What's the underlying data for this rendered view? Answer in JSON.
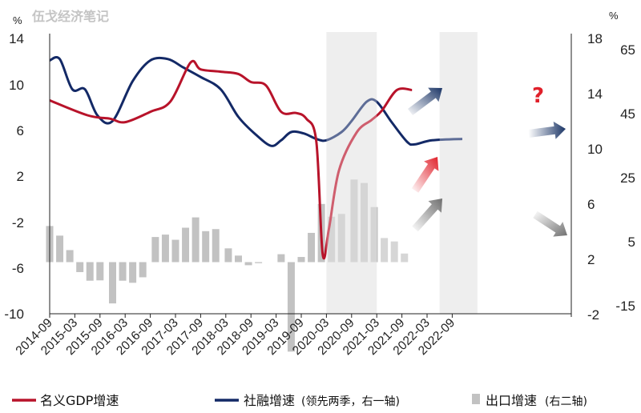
{
  "watermark": "伍戈经济笔记",
  "chart_data": {
    "type": "line",
    "title": "",
    "xlabel": "",
    "ylabel": "",
    "x_tick_labels": [
      "2014-09",
      "2015-03",
      "2015-09",
      "2016-03",
      "2016-09",
      "2017-03",
      "2017-09",
      "2018-03",
      "2018-09",
      "2019-03",
      "2019-09",
      "2020-03",
      "2020-09",
      "2021-03",
      "2021-09",
      "2022-03",
      "2022-09"
    ],
    "axes": {
      "left": {
        "unit": "%",
        "ticks": [
          "14",
          "10",
          "6",
          "2",
          "-2",
          "-6",
          "-10"
        ],
        "range": [
          -10,
          14
        ]
      },
      "right1": {
        "unit": "",
        "ticks": [
          "18",
          "14",
          "10",
          "6",
          "2",
          "-2"
        ],
        "range": [
          -2,
          18
        ]
      },
      "right2": {
        "unit": "%",
        "ticks": [
          "65",
          "45",
          "25",
          "5",
          "-15"
        ],
        "range": [
          -15,
          65
        ]
      }
    },
    "shaded_periods": [
      [
        "2020-03",
        "2021-03"
      ],
      [
        "2022-06",
        "2023-03"
      ]
    ],
    "series": [
      {
        "name": "名义GDP增速",
        "axis": "left",
        "color": "#b8132a",
        "values": [
          [
            0,
            8.6
          ],
          [
            1.5,
            7.3
          ],
          [
            2.4,
            7.0
          ],
          [
            3.0,
            6.7
          ],
          [
            4.0,
            7.6
          ],
          [
            4.8,
            8.5
          ],
          [
            5.6,
            11.9
          ],
          [
            6.0,
            11.3
          ],
          [
            6.8,
            11.1
          ],
          [
            7.5,
            10.9
          ],
          [
            8.0,
            10.2
          ],
          [
            8.6,
            9.9
          ],
          [
            9.2,
            7.6
          ],
          [
            9.8,
            7.5
          ],
          [
            10.2,
            7.0
          ],
          [
            10.6,
            5.0
          ],
          [
            10.85,
            -4.8
          ],
          [
            11.1,
            -2.6
          ],
          [
            11.5,
            2.5
          ],
          [
            12.2,
            5.8
          ],
          [
            12.8,
            6.9
          ],
          [
            13.2,
            7.7
          ],
          [
            13.8,
            9.5
          ],
          [
            14.4,
            9.5
          ]
        ]
      },
      {
        "name": "社融增速",
        "axis": "right1",
        "color": "#132966",
        "values": [
          [
            0,
            16.4
          ],
          [
            0.4,
            16.5
          ],
          [
            0.9,
            14.3
          ],
          [
            1.4,
            14.3
          ],
          [
            1.9,
            12.4
          ],
          [
            2.5,
            12.0
          ],
          [
            3.3,
            14.9
          ],
          [
            4.0,
            16.4
          ],
          [
            4.7,
            16.5
          ],
          [
            5.3,
            15.9
          ],
          [
            6.0,
            15.2
          ],
          [
            6.8,
            14.3
          ],
          [
            7.5,
            12.3
          ],
          [
            8.2,
            11.0
          ],
          [
            8.8,
            10.2
          ],
          [
            9.2,
            10.6
          ],
          [
            9.6,
            11.2
          ],
          [
            10.1,
            11.1
          ],
          [
            10.6,
            10.7
          ],
          [
            11.0,
            10.6
          ],
          [
            11.6,
            11.2
          ],
          [
            12.0,
            12.0
          ],
          [
            12.6,
            13.4
          ],
          [
            13.0,
            13.4
          ],
          [
            13.6,
            11.9
          ],
          [
            14.2,
            10.5
          ],
          [
            14.5,
            10.3
          ],
          [
            15.2,
            10.6
          ],
          [
            16.4,
            10.7
          ]
        ]
      },
      {
        "name": "出口增速",
        "axis": "right2",
        "color": "#c2c2c2",
        "type": "bar",
        "values": [
          [
            0.0,
            10.5
          ],
          [
            0.4,
            7.7
          ],
          [
            0.8,
            3.5
          ],
          [
            1.2,
            -2.9
          ],
          [
            1.6,
            -5.4
          ],
          [
            2.0,
            -5.3
          ],
          [
            2.5,
            -12.0
          ],
          [
            2.9,
            -5.4
          ],
          [
            3.3,
            -6.0
          ],
          [
            3.7,
            -4.4
          ],
          [
            4.2,
            7.3
          ],
          [
            4.6,
            8.0
          ],
          [
            5.0,
            6.5
          ],
          [
            5.4,
            10.0
          ],
          [
            5.8,
            13.0
          ],
          [
            6.2,
            9.0
          ],
          [
            6.6,
            9.6
          ],
          [
            7.1,
            4.0
          ],
          [
            7.5,
            1.9
          ],
          [
            7.9,
            -0.9
          ],
          [
            8.3,
            -0.3
          ],
          [
            8.7,
            0.0
          ],
          [
            9.2,
            2.3
          ],
          [
            9.6,
            -26.0
          ],
          [
            10.0,
            1.5
          ],
          [
            10.4,
            8.5
          ],
          [
            10.8,
            16.9
          ],
          [
            11.2,
            13.2
          ],
          [
            11.6,
            14.0
          ],
          [
            12.1,
            24.0
          ],
          [
            12.5,
            23.0
          ],
          [
            12.9,
            16.0
          ],
          [
            13.3,
            7.0
          ],
          [
            13.7,
            6.0
          ],
          [
            14.1,
            2.5
          ]
        ],
        "projected_from_index": 32
      }
    ],
    "annotations": [
      "?"
    ],
    "legend": {
      "position": "bottom",
      "items": [
        "名义GDP增速",
        "社融增速",
        "(领先两季，右一轴)",
        "出口增速",
        "(右二轴)"
      ]
    }
  },
  "colors": {
    "gdp": "#b8132a",
    "tsf": "#132966",
    "exports": "#c2c2c2",
    "shade": "#e6e6e6",
    "arrow_blue": "#1b3566",
    "arrow_red": "#e0202a",
    "arrow_gray": "#6f6f6f"
  }
}
